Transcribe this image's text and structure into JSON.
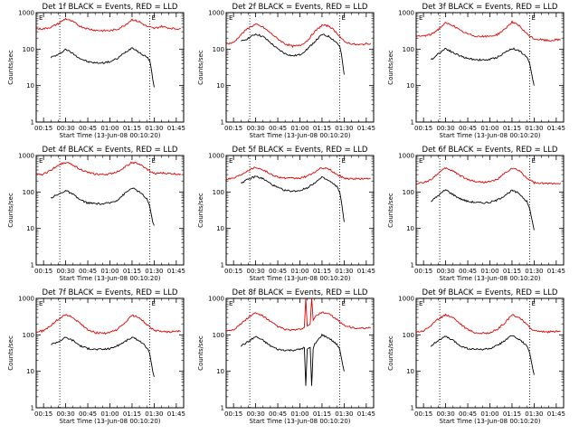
{
  "colors": {
    "events": "#000000",
    "lld": "#e00000",
    "axes": "#000000",
    "background": "#ffffff"
  },
  "chart_data": {
    "type": "line",
    "layout": "3x3 grid of panels",
    "yscale": "log",
    "ylim": [
      1,
      1000
    ],
    "y_ticks": [
      "1",
      "10",
      "100",
      "1000"
    ],
    "x_ticks": [
      "00:15",
      "00:30",
      "00:45",
      "01:00",
      "01:15",
      "01:30",
      "01:45"
    ],
    "xlabel": "Start Time (13-Jun-08 00:10:20)",
    "ylabel": "Counts/sec",
    "marker_text": "E",
    "vlines": [
      "00:26",
      "01:27"
    ],
    "panels": [
      {
        "title": "Det 1f BLACK = Events, RED = LLD",
        "series": [
          {
            "name": "Events",
            "color": "#000000",
            "x": [
              "00:20",
              "00:25",
              "00:30",
              "00:35",
              "00:40",
              "00:45",
              "00:50",
              "00:55",
              "01:00",
              "01:05",
              "01:10",
              "01:15",
              "01:17",
              "01:20",
              "01:25",
              "01:27",
              "01:28",
              "01:29",
              "01:30"
            ],
            "y": [
              60,
              70,
              100,
              75,
              55,
              45,
              42,
              42,
              45,
              55,
              80,
              110,
              100,
              80,
              60,
              50,
              30,
              15,
              9
            ]
          },
          {
            "name": "LLD",
            "color": "#e00000",
            "x": [
              "00:10",
              "00:15",
              "00:20",
              "00:25",
              "00:30",
              "00:35",
              "00:40",
              "00:45",
              "00:50",
              "00:55",
              "01:00",
              "01:05",
              "01:10",
              "01:15",
              "01:20",
              "01:25",
              "01:30",
              "01:35",
              "01:40",
              "01:45",
              "01:48"
            ],
            "y": [
              360,
              360,
              400,
              500,
              680,
              560,
              420,
              360,
              330,
              320,
              320,
              350,
              450,
              650,
              560,
              420,
              370,
              420,
              380,
              360,
              370
            ]
          }
        ]
      },
      {
        "title": "Det 2f BLACK = Events, RED = LLD",
        "series": [
          {
            "name": "Events",
            "color": "#000000",
            "x": [
              "00:20",
              "00:25",
              "00:30",
              "00:35",
              "00:40",
              "00:45",
              "00:50",
              "00:55",
              "01:00",
              "01:05",
              "01:10",
              "01:15",
              "01:20",
              "01:25",
              "01:27",
              "01:28",
              "01:29",
              "01:30"
            ],
            "y": [
              160,
              200,
              260,
              220,
              150,
              100,
              75,
              65,
              70,
              100,
              160,
              250,
              220,
              150,
              120,
              80,
              40,
              20
            ]
          },
          {
            "name": "LLD",
            "color": "#e00000",
            "x": [
              "00:10",
              "00:15",
              "00:20",
              "00:25",
              "00:30",
              "00:35",
              "00:40",
              "00:45",
              "00:50",
              "00:55",
              "01:00",
              "01:05",
              "01:10",
              "01:15",
              "01:20",
              "01:25",
              "01:30",
              "01:35",
              "01:40",
              "01:45",
              "01:48"
            ],
            "y": [
              140,
              150,
              250,
              380,
              480,
              400,
              280,
              190,
              140,
              120,
              125,
              170,
              300,
              450,
              430,
              280,
              160,
              140,
              130,
              140,
              145
            ]
          }
        ]
      },
      {
        "title": "Det 3f BLACK = Events, RED = LLD",
        "series": [
          {
            "name": "Events",
            "color": "#000000",
            "x": [
              "00:20",
              "00:25",
              "00:30",
              "00:35",
              "00:40",
              "00:45",
              "00:50",
              "00:55",
              "01:00",
              "01:05",
              "01:10",
              "01:15",
              "01:20",
              "01:25",
              "01:27",
              "01:28",
              "01:29",
              "01:30"
            ],
            "y": [
              50,
              75,
              105,
              80,
              65,
              55,
              52,
              50,
              52,
              60,
              80,
              105,
              90,
              60,
              40,
              25,
              15,
              10
            ]
          },
          {
            "name": "LLD",
            "color": "#e00000",
            "x": [
              "00:10",
              "00:15",
              "00:20",
              "00:25",
              "00:30",
              "00:35",
              "00:40",
              "00:45",
              "00:50",
              "00:55",
              "01:00",
              "01:05",
              "01:10",
              "01:15",
              "01:20",
              "01:25",
              "01:30",
              "01:35",
              "01:40",
              "01:45",
              "01:48"
            ],
            "y": [
              220,
              230,
              250,
              350,
              520,
              450,
              320,
              260,
              230,
              220,
              225,
              250,
              350,
              560,
              430,
              260,
              190,
              180,
              170,
              180,
              180
            ]
          }
        ]
      },
      {
        "title": "Det 4f BLACK = Events, RED = LLD",
        "series": [
          {
            "name": "Events",
            "color": "#000000",
            "x": [
              "00:20",
              "00:25",
              "00:30",
              "00:35",
              "00:40",
              "00:45",
              "00:50",
              "00:55",
              "01:00",
              "01:05",
              "01:10",
              "01:15",
              "01:20",
              "01:25",
              "01:27",
              "01:28",
              "01:29",
              "01:30"
            ],
            "y": [
              70,
              85,
              110,
              85,
              60,
              50,
              48,
              47,
              50,
              60,
              90,
              130,
              100,
              65,
              40,
              25,
              15,
              12
            ]
          },
          {
            "name": "LLD",
            "color": "#e00000",
            "x": [
              "00:10",
              "00:15",
              "00:20",
              "00:25",
              "00:30",
              "00:35",
              "00:40",
              "00:45",
              "00:50",
              "00:55",
              "01:00",
              "01:05",
              "01:10",
              "01:15",
              "01:20",
              "01:25",
              "01:30",
              "01:35",
              "01:40",
              "01:45",
              "01:48"
            ],
            "y": [
              300,
              310,
              400,
              550,
              650,
              550,
              420,
              340,
              310,
              300,
              310,
              360,
              480,
              650,
              580,
              420,
              320,
              330,
              320,
              310,
              310
            ]
          }
        ]
      },
      {
        "title": "Det 5f BLACK = Events, RED = LLD",
        "series": [
          {
            "name": "Events",
            "color": "#000000",
            "x": [
              "00:20",
              "00:25",
              "00:30",
              "00:35",
              "00:40",
              "00:45",
              "00:50",
              "00:55",
              "01:00",
              "01:05",
              "01:10",
              "01:15",
              "01:20",
              "01:25",
              "01:27",
              "01:28",
              "01:29",
              "01:30"
            ],
            "y": [
              180,
              220,
              270,
              230,
              170,
              130,
              110,
              105,
              110,
              130,
              180,
              250,
              200,
              140,
              100,
              60,
              30,
              15
            ]
          },
          {
            "name": "LLD",
            "color": "#e00000",
            "x": [
              "00:10",
              "00:15",
              "00:20",
              "00:25",
              "00:30",
              "00:35",
              "00:40",
              "00:45",
              "00:50",
              "00:55",
              "01:00",
              "01:05",
              "01:10",
              "01:15",
              "01:20",
              "01:25",
              "01:30",
              "01:35",
              "01:40",
              "01:45",
              "01:48"
            ],
            "y": [
              230,
              240,
              300,
              400,
              480,
              410,
              310,
              260,
              240,
              235,
              240,
              270,
              350,
              460,
              420,
              300,
              240,
              230,
              230,
              230,
              235
            ]
          }
        ]
      },
      {
        "title": "Det 6f BLACK = Events, RED = LLD",
        "series": [
          {
            "name": "Events",
            "color": "#000000",
            "x": [
              "00:20",
              "00:25",
              "00:30",
              "00:35",
              "00:40",
              "00:45",
              "00:50",
              "00:55",
              "01:00",
              "01:05",
              "01:10",
              "01:15",
              "01:20",
              "01:25",
              "01:27",
              "01:28",
              "01:29",
              "01:30"
            ],
            "y": [
              55,
              80,
              115,
              85,
              65,
              55,
              52,
              50,
              52,
              60,
              80,
              110,
              90,
              55,
              35,
              22,
              14,
              9
            ]
          },
          {
            "name": "LLD",
            "color": "#e00000",
            "x": [
              "00:10",
              "00:15",
              "00:20",
              "00:25",
              "00:30",
              "00:35",
              "00:40",
              "00:45",
              "00:50",
              "00:55",
              "01:00",
              "01:05",
              "01:10",
              "01:15",
              "01:20",
              "01:25",
              "01:30",
              "01:35",
              "01:40",
              "01:45",
              "01:48"
            ],
            "y": [
              170,
              180,
              220,
              330,
              450,
              380,
              280,
              220,
              195,
              185,
              190,
              220,
              320,
              450,
              380,
              240,
              180,
              170,
              170,
              175,
              175
            ]
          }
        ]
      },
      {
        "title": "Det 7f BLACK = Events, RED = LLD",
        "series": [
          {
            "name": "Events",
            "color": "#000000",
            "x": [
              "00:20",
              "00:25",
              "00:30",
              "00:35",
              "00:40",
              "00:45",
              "00:50",
              "00:55",
              "01:00",
              "01:05",
              "01:10",
              "01:15",
              "01:20",
              "01:25",
              "01:27",
              "01:28",
              "01:29",
              "01:30"
            ],
            "y": [
              55,
              65,
              85,
              70,
              50,
              42,
              40,
              40,
              42,
              50,
              65,
              85,
              70,
              45,
              30,
              18,
              10,
              7
            ]
          },
          {
            "name": "LLD",
            "color": "#e00000",
            "x": [
              "00:10",
              "00:15",
              "00:20",
              "00:25",
              "00:30",
              "00:35",
              "00:40",
              "00:45",
              "00:50",
              "00:55",
              "01:00",
              "01:05",
              "01:10",
              "01:15",
              "01:20",
              "01:25",
              "01:30",
              "01:35",
              "01:40",
              "01:45",
              "01:48"
            ],
            "y": [
              120,
              130,
              180,
              270,
              360,
              300,
              200,
              140,
              115,
              110,
              115,
              140,
              210,
              340,
              300,
              190,
              130,
              125,
              120,
              125,
              125
            ]
          }
        ]
      },
      {
        "title": "Det 8f BLACK = Events, RED = LLD",
        "series": [
          {
            "name": "Events",
            "color": "#000000",
            "x": [
              "00:20",
              "00:25",
              "00:30",
              "00:35",
              "00:40",
              "00:45",
              "00:50",
              "00:55",
              "01:00",
              "01:03",
              "01:04",
              "01:05",
              "01:07",
              "01:08",
              "01:09",
              "01:10",
              "01:15",
              "01:20",
              "01:25",
              "01:27",
              "01:28",
              "01:29",
              "01:30"
            ],
            "y": [
              50,
              65,
              90,
              70,
              50,
              40,
              38,
              38,
              40,
              45,
              4,
              40,
              45,
              4,
              42,
              55,
              100,
              80,
              55,
              40,
              25,
              15,
              10
            ]
          },
          {
            "name": "LLD",
            "color": "#e00000",
            "x": [
              "00:10",
              "00:15",
              "00:20",
              "00:25",
              "00:30",
              "00:35",
              "00:40",
              "00:45",
              "00:50",
              "00:55",
              "01:00",
              "01:03",
              "01:04",
              "01:05",
              "01:07",
              "01:08",
              "01:09",
              "01:10",
              "01:15",
              "01:20",
              "01:25",
              "01:30",
              "01:35",
              "01:40",
              "01:45",
              "01:48"
            ],
            "y": [
              130,
              140,
              200,
              300,
              400,
              330,
              230,
              170,
              140,
              135,
              140,
              160,
              1000,
              170,
              200,
              1000,
              250,
              300,
              420,
              380,
              260,
              180,
              160,
              150,
              150,
              155
            ]
          }
        ]
      },
      {
        "title": "Det 9f BLACK = Events, RED = LLD",
        "series": [
          {
            "name": "Events",
            "color": "#000000",
            "x": [
              "00:20",
              "00:25",
              "00:30",
              "00:35",
              "00:40",
              "00:45",
              "00:50",
              "00:55",
              "01:00",
              "01:05",
              "01:10",
              "01:15",
              "01:20",
              "01:25",
              "01:27",
              "01:28",
              "01:29",
              "01:30"
            ],
            "y": [
              50,
              70,
              90,
              70,
              50,
              42,
              40,
              40,
              42,
              50,
              70,
              95,
              75,
              50,
              32,
              20,
              12,
              8
            ]
          },
          {
            "name": "LLD",
            "color": "#e00000",
            "x": [
              "00:10",
              "00:15",
              "00:20",
              "00:25",
              "00:30",
              "00:35",
              "00:40",
              "00:45",
              "00:50",
              "00:55",
              "01:00",
              "01:05",
              "01:10",
              "01:15",
              "01:20",
              "01:25",
              "01:30",
              "01:35",
              "01:40",
              "01:45",
              "01:48"
            ],
            "y": [
              120,
              130,
              180,
              270,
              360,
              300,
              200,
              140,
              115,
              110,
              115,
              140,
              210,
              350,
              300,
              190,
              130,
              125,
              120,
              125,
              125
            ]
          }
        ]
      }
    ]
  }
}
